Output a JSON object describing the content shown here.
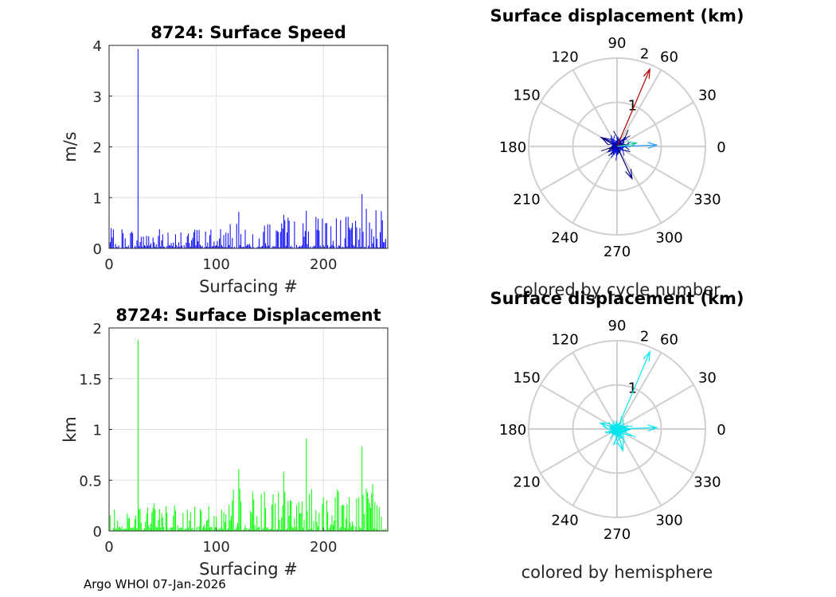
{
  "footer": "Argo WHOI 07-Jan-2026",
  "chart_data": [
    {
      "type": "bar",
      "title": "8724: Surface Speed",
      "xlabel": "Surfacing #",
      "ylabel": "m/s",
      "xlim": [
        0,
        260
      ],
      "ylim": [
        0,
        4
      ],
      "xticks": [
        "0",
        "100",
        "200"
      ],
      "yticks": [
        "0",
        "1",
        "2",
        "3",
        "4"
      ],
      "grid": true,
      "color": "#0000ff",
      "spikes": [
        {
          "x": 27,
          "y": 3.93
        },
        {
          "x": 121,
          "y": 0.72
        },
        {
          "x": 163,
          "y": 0.66
        },
        {
          "x": 184,
          "y": 0.74
        },
        {
          "x": 236,
          "y": 1.07
        },
        {
          "x": 240,
          "y": 0.78
        },
        {
          "x": 249,
          "y": 0.75
        },
        {
          "x": 254,
          "y": 0.73
        }
      ],
      "baseline_max": 0.45,
      "n": 258
    },
    {
      "type": "polar-quiver",
      "title": "Surface displacement (km)",
      "caption": "colored by cycle number",
      "theta_ticks": [
        "0",
        "30",
        "60",
        "90",
        "120",
        "150",
        "180",
        "210",
        "240",
        "270",
        "300",
        "330"
      ],
      "r_ticks": [
        "1",
        "2"
      ],
      "rmax": 2,
      "vectors": [
        {
          "r": 1.9,
          "theta": 67,
          "color": "#b00000"
        },
        {
          "r": 0.9,
          "theta": 2,
          "color": "#30a0ff"
        },
        {
          "r": 0.8,
          "theta": -65,
          "color": "#000080"
        },
        {
          "r": 0.45,
          "theta": 10,
          "color": "#20c0a0"
        },
        {
          "r": 0.4,
          "theta": 150,
          "color": "#000090"
        }
      ]
    },
    {
      "type": "bar",
      "title": "8724: Surface Displacement",
      "xlabel": "Surfacing #",
      "ylabel": "km",
      "xlim": [
        0,
        260
      ],
      "ylim": [
        0,
        2
      ],
      "xticks": [
        "0",
        "100",
        "200"
      ],
      "yticks": [
        "0",
        "0.5",
        "1",
        "1.5",
        "2"
      ],
      "grid": true,
      "color": "#00ff00",
      "spikes": [
        {
          "x": 27,
          "y": 1.88
        },
        {
          "x": 121,
          "y": 0.61
        },
        {
          "x": 163,
          "y": 0.58
        },
        {
          "x": 184,
          "y": 0.91
        },
        {
          "x": 236,
          "y": 0.83
        },
        {
          "x": 240,
          "y": 0.42
        },
        {
          "x": 246,
          "y": 0.46
        }
      ],
      "baseline_max": 0.3,
      "n": 258
    },
    {
      "type": "polar-quiver",
      "title": "Surface displacement (km)",
      "caption": "colored by hemisphere",
      "theta_ticks": [
        "0",
        "30",
        "60",
        "90",
        "120",
        "150",
        "180",
        "210",
        "240",
        "270",
        "300",
        "330"
      ],
      "r_ticks": [
        "1",
        "2"
      ],
      "rmax": 2,
      "vectors": [
        {
          "r": 1.9,
          "theta": 67,
          "color": "#00e5ee"
        },
        {
          "r": 0.9,
          "theta": 2,
          "color": "#00e5ee"
        },
        {
          "r": 0.5,
          "theta": -75,
          "color": "#00e5ee"
        },
        {
          "r": 0.4,
          "theta": 160,
          "color": "#00e5ee"
        }
      ]
    }
  ]
}
